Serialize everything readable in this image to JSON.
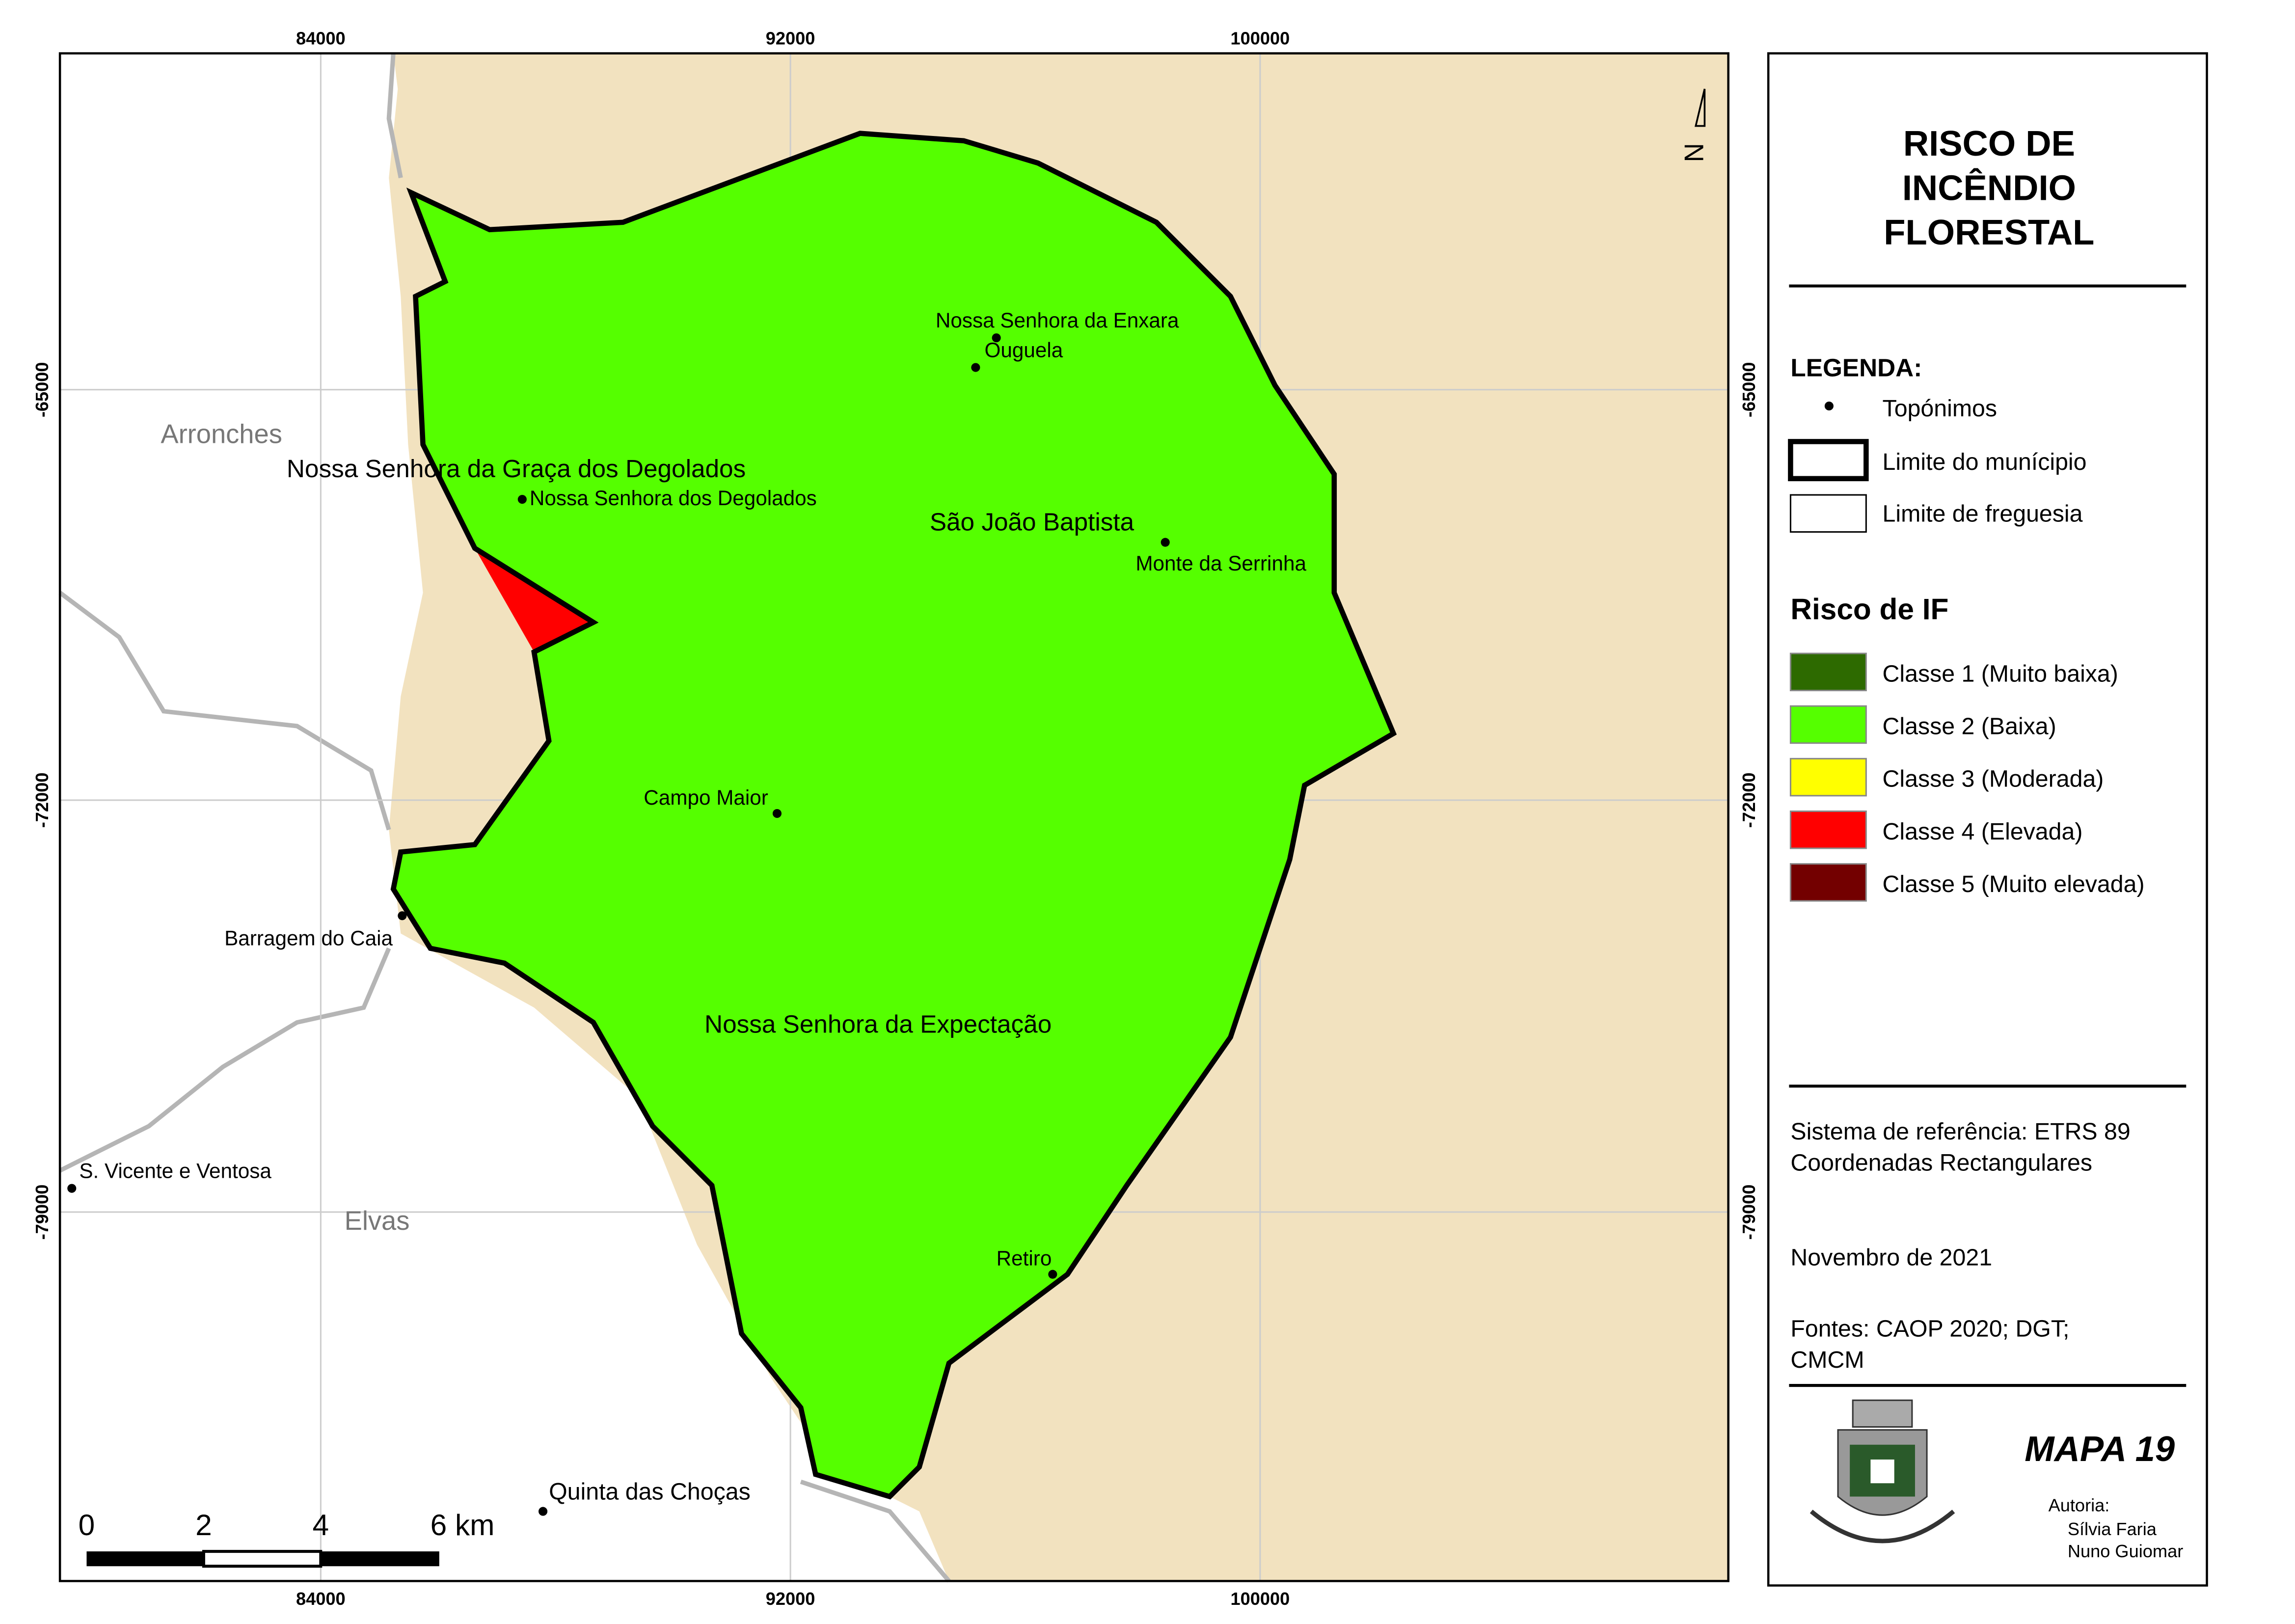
{
  "grid": {
    "top": [
      "84000",
      "92000",
      "100000"
    ],
    "bottom": [
      "84000",
      "92000",
      "100000"
    ],
    "left": [
      "-65000",
      "-72000",
      "-79000"
    ],
    "right": [
      "-65000",
      "-72000",
      "-79000"
    ]
  },
  "north": "N",
  "places": {
    "regions": [
      "Arronches",
      "Elvas"
    ],
    "parishes": [
      "Nossa Senhora da Graça dos Degolados",
      "São João Baptista",
      "Nossa Senhora da Expectação"
    ],
    "toponyms": [
      "Nossa Senhora da Enxara",
      "Ouguela",
      "Nossa Senhora dos Degolados",
      "Monte da Serrinha",
      "Campo Maior",
      "Barragem do Caia",
      "S. Vicente e Ventosa",
      "Retiro",
      "Quinta das Choças"
    ]
  },
  "scale": {
    "labels": [
      "0",
      "2",
      "4",
      "6 km"
    ]
  },
  "panel": {
    "title": [
      "RISCO DE",
      "INCÊNDIO",
      "FLORESTAL"
    ],
    "legend_heading": "LEGENDA:",
    "legend": [
      "Topónimos",
      "Limite do munícipio",
      "Limite de freguesia"
    ],
    "risk_heading": "Risco de IF",
    "risk_classes": [
      {
        "label": "Classe 1 (Muito baixa)",
        "color": "#2d6a00"
      },
      {
        "label": "Classe 2 (Baixa)",
        "color": "#55ff00"
      },
      {
        "label": "Classe 3 (Moderada)",
        "color": "#ffff00"
      },
      {
        "label": "Classe 4 (Elevada)",
        "color": "#ff0000"
      },
      {
        "label": "Classe 5 (Muito elevada)",
        "color": "#730000"
      }
    ],
    "info": [
      "Sistema de referência: ETRS 89",
      "Coordenadas Rectangulares",
      "Novembro de 2021",
      "Fontes: CAOP 2020; DGT;",
      "CMCM"
    ],
    "map_number": "MAPA 19",
    "authorship": [
      "Autoria:",
      "Sílvia Faria",
      "Nuno Guiomar"
    ]
  }
}
